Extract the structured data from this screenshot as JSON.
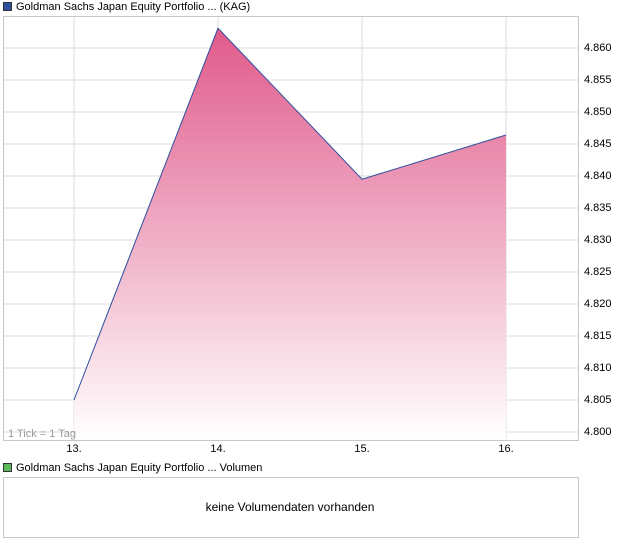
{
  "chart_data": {
    "type": "area",
    "categories": [
      "13.",
      "14.",
      "15.",
      "16."
    ],
    "series": [
      {
        "name": "Goldman Sachs Japan Equity Portfolio ... (KAG)",
        "color": "#2f4f9f",
        "fill_top": "#e05a8a",
        "values": [
          4.805,
          4.8631,
          4.8395,
          4.8464
        ]
      }
    ],
    "ylim": [
      4.79875,
      4.865
    ],
    "yticks": [
      {
        "value": 4.8,
        "label": "4.800"
      },
      {
        "value": 4.805,
        "label": "4.805"
      },
      {
        "value": 4.81,
        "label": "4.810"
      },
      {
        "value": 4.815,
        "label": "4.815"
      },
      {
        "value": 4.82,
        "label": "4.820"
      },
      {
        "value": 4.825,
        "label": "4.825"
      },
      {
        "value": 4.83,
        "label": "4.830"
      },
      {
        "value": 4.835,
        "label": "4.835"
      },
      {
        "value": 4.84,
        "label": "4.840"
      },
      {
        "value": 4.845,
        "label": "4.845"
      },
      {
        "value": 4.85,
        "label": "4.850"
      },
      {
        "value": 4.855,
        "label": "4.855"
      },
      {
        "value": 4.86,
        "label": "4.860"
      }
    ],
    "grid": true,
    "annotation": "1 Tick = 1 Tag"
  },
  "volume_panel": {
    "legend": "Goldman Sachs Japan Equity Portfolio ... Volumen",
    "legend_color": "#5cb85c",
    "message": "keine Volumendaten vorhanden"
  }
}
